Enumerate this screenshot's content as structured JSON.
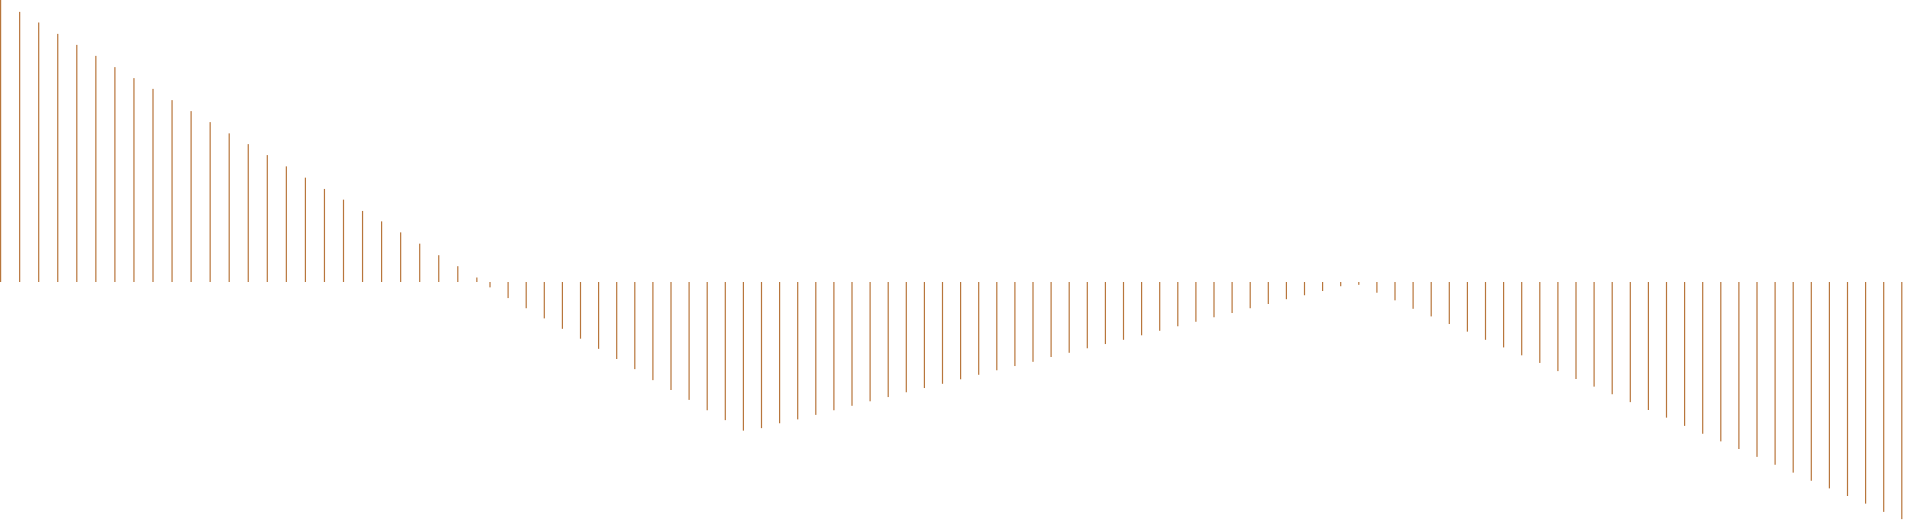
{
  "chart_data": {
    "type": "bar",
    "subtype": "stem",
    "title": "",
    "xlabel": "",
    "ylabel": "",
    "axes_visible": false,
    "grid": false,
    "legend": "none",
    "baseline": 0,
    "ylim": [
      -0.85,
      1.0
    ],
    "colors": {
      "stem": "#b8763c",
      "background": "#ffffff"
    },
    "values": [
      1.0,
      0.958,
      0.92,
      0.88,
      0.841,
      0.802,
      0.762,
      0.723,
      0.685,
      0.645,
      0.606,
      0.567,
      0.527,
      0.489,
      0.45,
      0.41,
      0.37,
      0.33,
      0.292,
      0.252,
      0.215,
      0.176,
      0.136,
      0.095,
      0.056,
      0.016,
      -0.019,
      -0.057,
      -0.093,
      -0.129,
      -0.166,
      -0.201,
      -0.237,
      -0.273,
      -0.309,
      -0.348,
      -0.383,
      -0.418,
      -0.455,
      -0.49,
      -0.527,
      -0.518,
      -0.501,
      -0.487,
      -0.471,
      -0.455,
      -0.439,
      -0.423,
      -0.408,
      -0.391,
      -0.376,
      -0.361,
      -0.345,
      -0.329,
      -0.313,
      -0.298,
      -0.283,
      -0.266,
      -0.251,
      -0.235,
      -0.22,
      -0.205,
      -0.189,
      -0.173,
      -0.157,
      -0.141,
      -0.125,
      -0.11,
      -0.093,
      -0.078,
      -0.061,
      -0.047,
      -0.032,
      -0.015,
      -0.01,
      -0.038,
      -0.065,
      -0.095,
      -0.122,
      -0.149,
      -0.176,
      -0.205,
      -0.232,
      -0.26,
      -0.287,
      -0.316,
      -0.344,
      -0.371,
      -0.398,
      -0.426,
      -0.454,
      -0.481,
      -0.51,
      -0.538,
      -0.565,
      -0.592,
      -0.62,
      -0.648,
      -0.676,
      -0.705,
      -0.732,
      -0.759,
      -0.786,
      -0.815,
      -0.841
    ]
  }
}
